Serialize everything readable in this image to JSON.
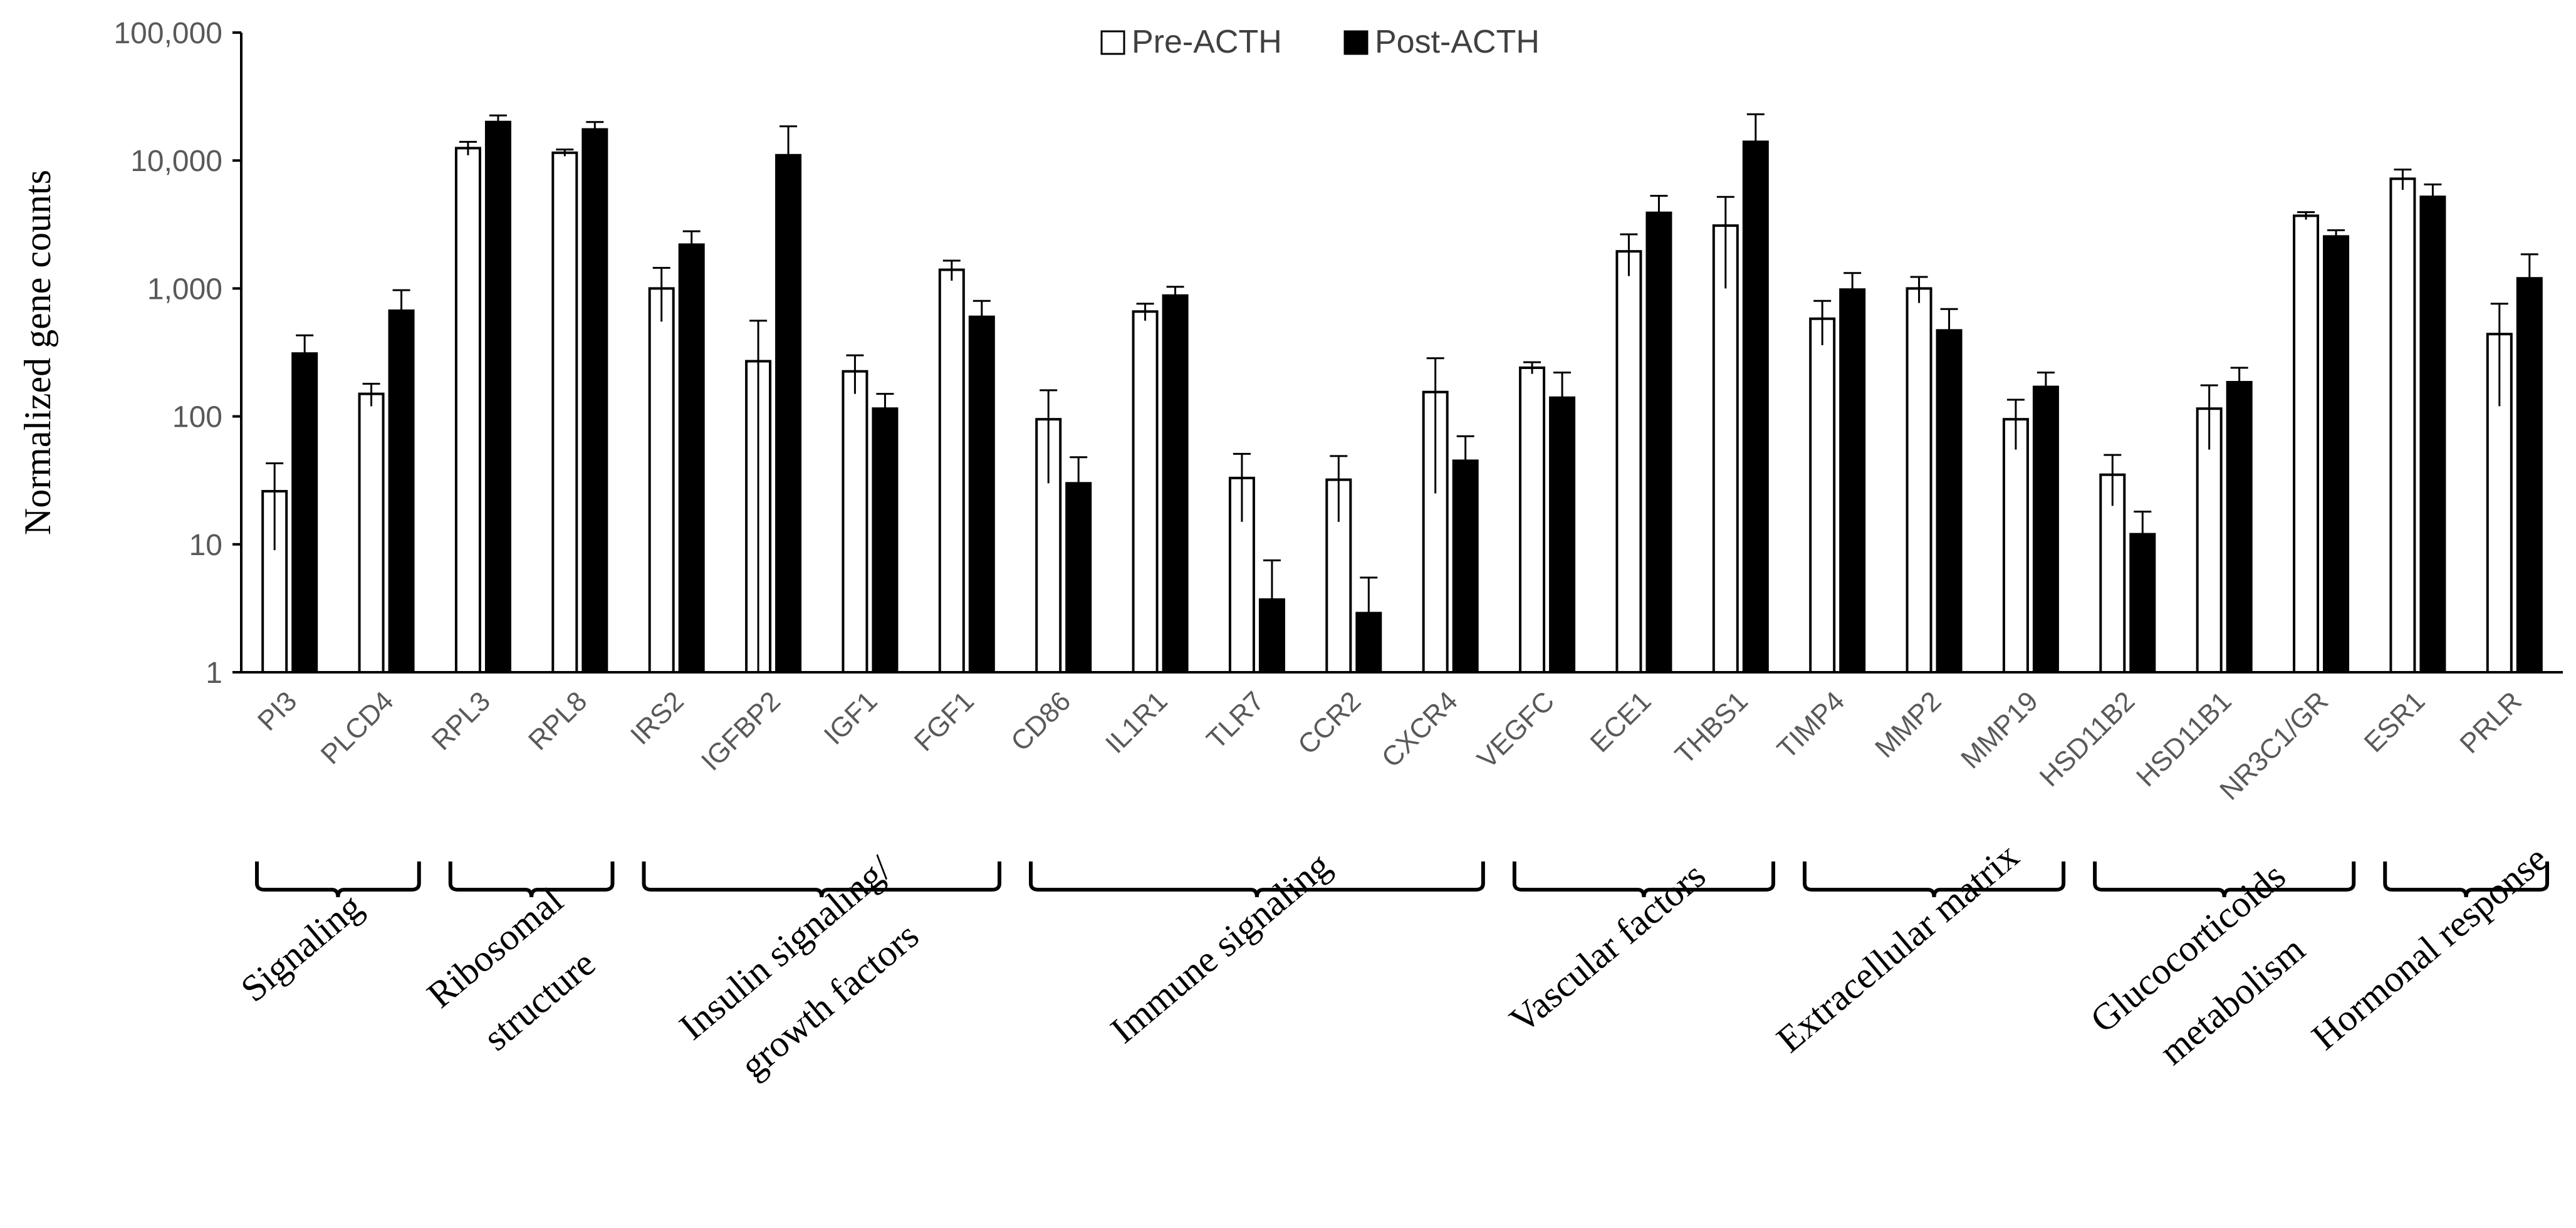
{
  "chart_data": {
    "type": "bar",
    "scale": "log",
    "ylabel": "Normalized gene counts",
    "ylim": [
      1,
      100000
    ],
    "yticks": [
      1,
      10,
      100,
      1000,
      10000,
      100000
    ],
    "ytick_labels": [
      "1",
      "10",
      "100",
      "1,000",
      "10,000",
      "100,000"
    ],
    "legend_position": "top-center",
    "categories": [
      "PI3",
      "PLCD4",
      "RPL3",
      "RPL8",
      "IRS2",
      "IGFBP2",
      "IGF1",
      "FGF1",
      "CD86",
      "IL1R1",
      "TLR7",
      "CCR2",
      "CXCR4",
      "VEGFC",
      "ECE1",
      "THBS1",
      "TIMP4",
      "MMP2",
      "MMP19",
      "HSD11B2",
      "HSD11B1",
      "NR3C1/GR",
      "ESR1",
      "PRLR"
    ],
    "series": [
      {
        "name": "Pre-ACTH",
        "fill": "#ffffff",
        "stroke": "#000000",
        "values": [
          26,
          150,
          12500,
          11500,
          1000,
          270,
          225,
          1400,
          95,
          660,
          33,
          32,
          155,
          240,
          1950,
          3100,
          580,
          1000,
          95,
          35,
          115,
          3700,
          7200,
          440
        ],
        "errors": [
          17,
          30,
          1500,
          700,
          450,
          290,
          75,
          250,
          65,
          100,
          18,
          17,
          130,
          25,
          700,
          2100,
          220,
          230,
          40,
          15,
          60,
          250,
          1300,
          320
        ]
      },
      {
        "name": "Post-ACTH",
        "fill": "#000000",
        "stroke": "#000000",
        "values": [
          310,
          670,
          20000,
          17500,
          2200,
          11000,
          115,
          600,
          30,
          880,
          3.7,
          2.9,
          45,
          140,
          3900,
          14000,
          980,
          470,
          170,
          12,
          185,
          2550,
          5200,
          1200
        ],
        "errors": [
          120,
          300,
          2500,
          2500,
          600,
          7500,
          35,
          200,
          18,
          150,
          3.8,
          2.6,
          25,
          80,
          1400,
          9000,
          340,
          220,
          50,
          6,
          55,
          300,
          1300,
          650
        ]
      }
    ],
    "groups": [
      {
        "label_lines": [
          "Signaling"
        ],
        "start": 0,
        "end": 1
      },
      {
        "label_lines": [
          "Ribosomal",
          "structure"
        ],
        "start": 2,
        "end": 3
      },
      {
        "label_lines": [
          "Insulin signaling/",
          "growth factors"
        ],
        "start": 4,
        "end": 7
      },
      {
        "label_lines": [
          "Immune signaling"
        ],
        "start": 8,
        "end": 12
      },
      {
        "label_lines": [
          "Vascular factors"
        ],
        "start": 13,
        "end": 15
      },
      {
        "label_lines": [
          "Extracellular matrix"
        ],
        "start": 16,
        "end": 18
      },
      {
        "label_lines": [
          "Glucocorticoids",
          "metabolism"
        ],
        "start": 19,
        "end": 21
      },
      {
        "label_lines": [
          "Hormonal response"
        ],
        "start": 22,
        "end": 23
      }
    ]
  }
}
